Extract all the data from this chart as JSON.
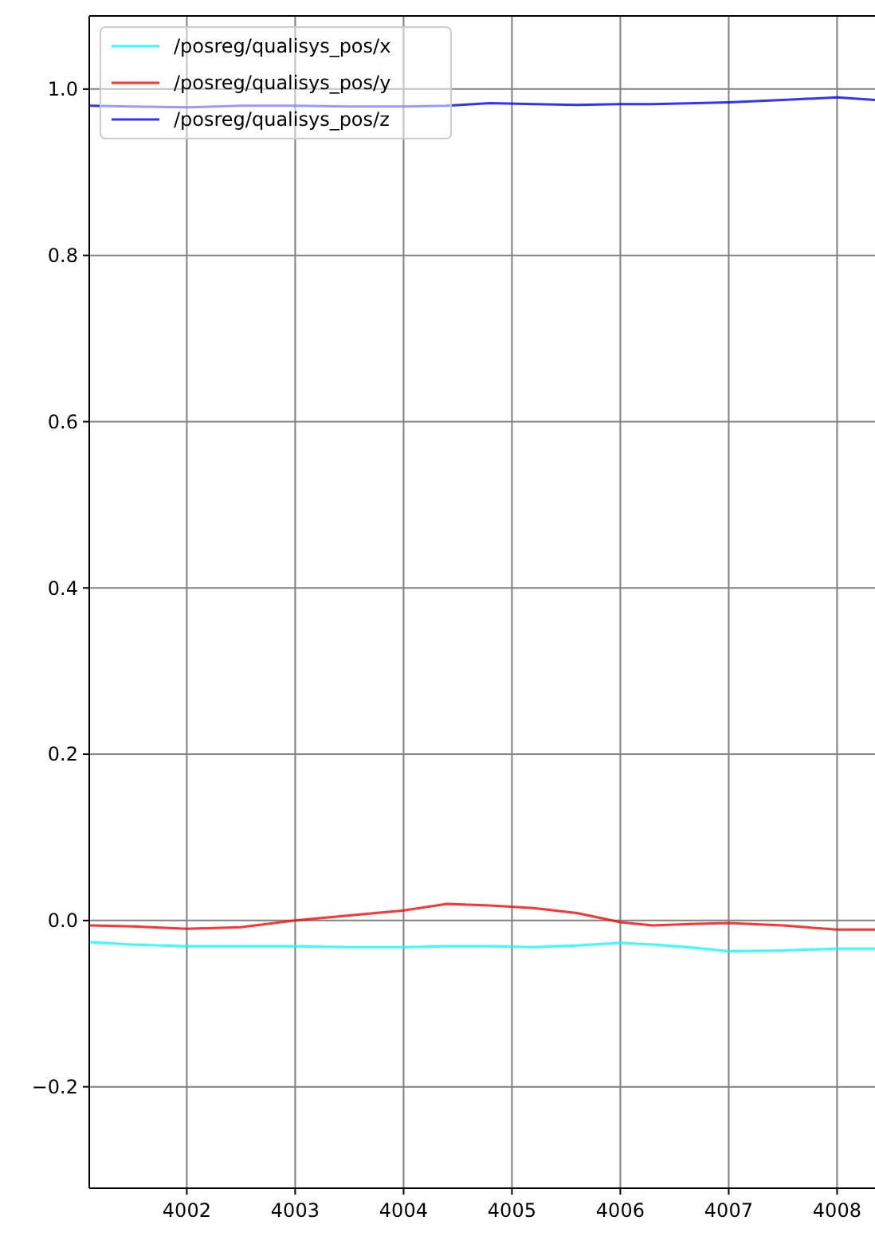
{
  "chart_data": {
    "type": "line",
    "xlim": [
      4001.1,
      4008.35
    ],
    "ylim": [
      -0.322,
      1.088
    ],
    "xticks": [
      4002,
      4003,
      4004,
      4005,
      4006,
      4007,
      4008
    ],
    "yticks": [
      {
        "value": -0.2,
        "label": "−0.2"
      },
      {
        "value": 0,
        "label": "0.0"
      },
      0.2,
      0.4,
      0.6,
      0.8,
      {
        "value": 1,
        "label": "1.0"
      }
    ],
    "grid": true,
    "legend": "top left",
    "line_style": "solid",
    "marker": "none",
    "x": [
      4001.1,
      4001.5,
      4002,
      4002.5,
      4003,
      4003.5,
      4004,
      4004.4,
      4004.8,
      4005.2,
      4005.6,
      4006,
      4006.3,
      4006.7,
      4007,
      4007.5,
      4008,
      4008.35
    ],
    "series": [
      {
        "name": "/posreg/qualisys_pos/x",
        "color": "#00ffff",
        "values": [
          -0.026,
          -0.029,
          -0.031,
          -0.031,
          -0.031,
          -0.032,
          -0.032,
          -0.031,
          -0.031,
          -0.032,
          -0.03,
          -0.027,
          -0.029,
          -0.033,
          -0.037,
          -0.036,
          -0.034,
          -0.034
        ]
      },
      {
        "name": "/posreg/qualisys_pos/y",
        "color": "#ff0000",
        "values": [
          -0.006,
          -0.007,
          -0.01,
          -0.008,
          0.0,
          0.006,
          0.012,
          0.02,
          0.018,
          0.015,
          0.009,
          -0.002,
          -0.006,
          -0.004,
          -0.003,
          -0.006,
          -0.011,
          -0.011
        ]
      },
      {
        "name": "/posreg/qualisys_pos/z",
        "color": "#0000ff",
        "values": [
          0.98,
          0.979,
          0.978,
          0.98,
          0.98,
          0.979,
          0.979,
          0.98,
          0.983,
          0.982,
          0.981,
          0.982,
          0.982,
          0.983,
          0.984,
          0.987,
          0.99,
          0.987
        ]
      }
    ]
  }
}
